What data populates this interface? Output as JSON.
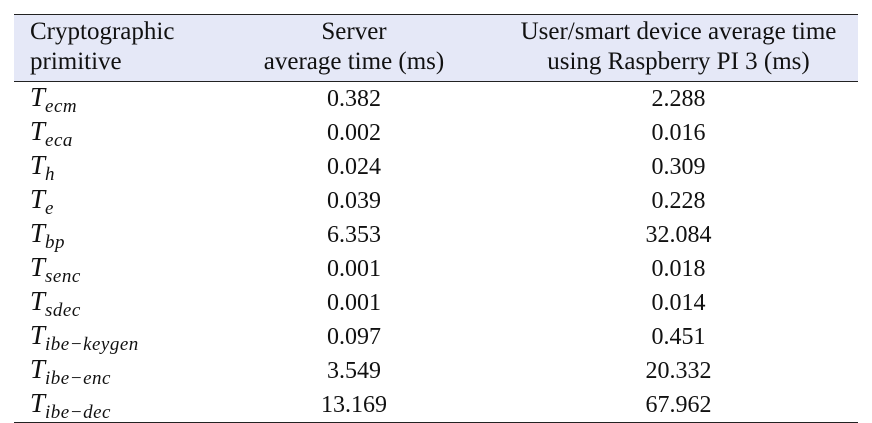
{
  "table": {
    "headers": [
      {
        "line1": "Cryptographic",
        "line2": "primitive"
      },
      {
        "line1": "Server",
        "line2": "average time (ms)"
      },
      {
        "line1": "User/smart device average time",
        "line2": "using Raspberry PI 3 (ms)"
      }
    ],
    "rows": [
      {
        "symbol": "T",
        "sub": "ecm",
        "server": "0.382",
        "device": "2.288"
      },
      {
        "symbol": "T",
        "sub": "eca",
        "server": "0.002",
        "device": "0.016"
      },
      {
        "symbol": "T",
        "sub": "h",
        "server": "0.024",
        "device": "0.309"
      },
      {
        "symbol": "T",
        "sub": "e",
        "server": "0.039",
        "device": "0.228"
      },
      {
        "symbol": "T",
        "sub": "bp",
        "server": "6.353",
        "device": "32.084"
      },
      {
        "symbol": "T",
        "sub": "senc",
        "server": "0.001",
        "device": "0.018"
      },
      {
        "symbol": "T",
        "sub": "sdec",
        "server": "0.001",
        "device": "0.014"
      },
      {
        "symbol": "T",
        "sub": "ibe−keygen",
        "server": "0.097",
        "device": "0.451"
      },
      {
        "symbol": "T",
        "sub": "ibe−enc",
        "server": "3.549",
        "device": "20.332"
      },
      {
        "symbol": "T",
        "sub": "ibe−dec",
        "server": "13.169",
        "device": "67.962"
      }
    ]
  }
}
